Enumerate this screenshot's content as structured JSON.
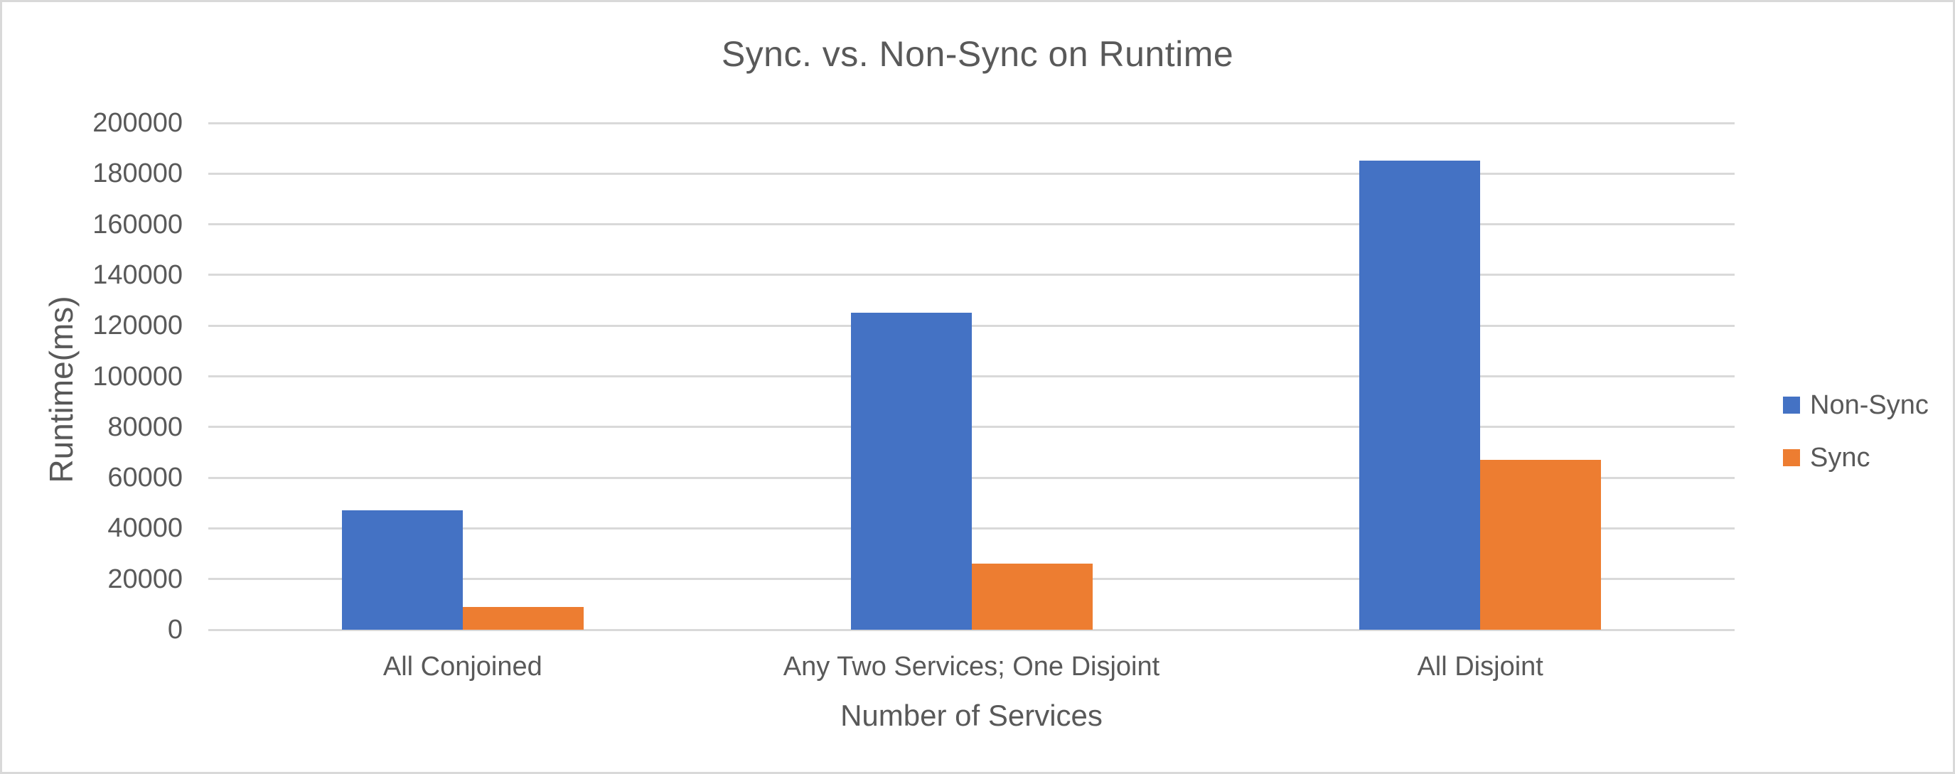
{
  "frame": {
    "background_color": "#ffffff",
    "border_color": "#d9d9d9"
  },
  "chart_data": {
    "type": "bar",
    "title": "Sync. vs. Non-Sync on Runtime",
    "xlabel": "Number of Services",
    "ylabel": "Runtime(ms)",
    "categories": [
      "All Conjoined",
      "Any Two Services; One Disjoint",
      "All Disjoint"
    ],
    "series": [
      {
        "name": "Non-Sync",
        "color": "#4472c4",
        "values": [
          47000,
          125000,
          185000
        ]
      },
      {
        "name": "Sync",
        "color": "#ed7d31",
        "values": [
          9000,
          26000,
          67000
        ]
      }
    ],
    "ylim": [
      0,
      200000
    ],
    "ytick_values": [
      0,
      20000,
      40000,
      60000,
      80000,
      100000,
      120000,
      140000,
      160000,
      180000,
      200000
    ],
    "ytick_labels": [
      "0",
      "20000",
      "40000",
      "60000",
      "80000",
      "100000",
      "120000",
      "140000",
      "160000",
      "180000",
      "200000"
    ],
    "grid": true,
    "gridline_color": "#d9d9d9",
    "text_color": "#595959",
    "legend_position": "right"
  }
}
